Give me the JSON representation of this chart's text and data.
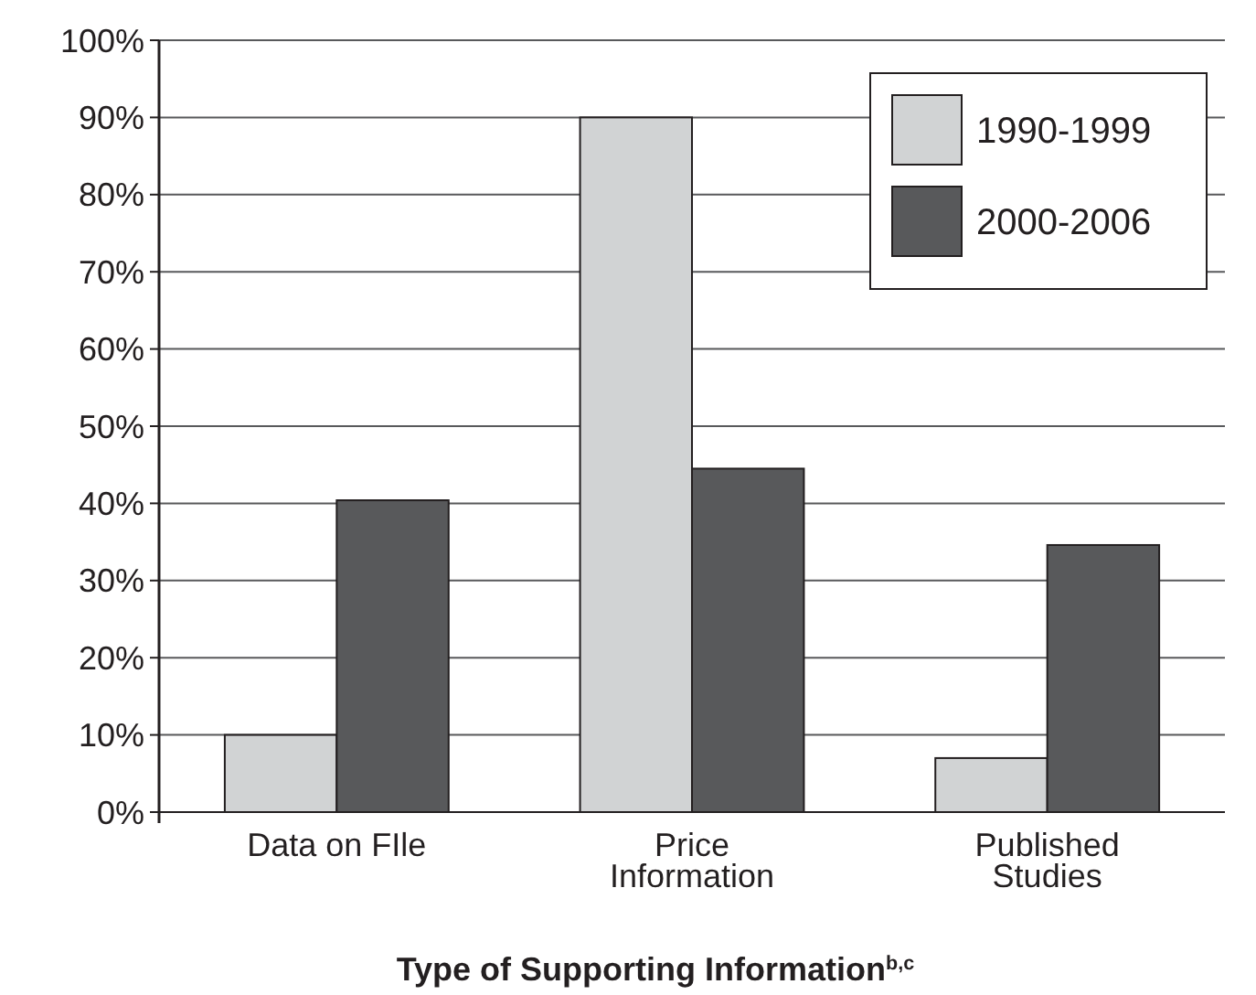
{
  "chart_data": {
    "type": "bar",
    "xlabel": "Type of Supporting Information$^{b,c}$",
    "categories": [
      "Data on FIle",
      "Price\nInformation",
      "Published\nStudies"
    ],
    "series": [
      {
        "name": "1990-1999",
        "color": "#d1d3d4",
        "values": [
          10,
          90,
          7
        ]
      },
      {
        "name": "2000-2006",
        "color": "#58595b",
        "values": [
          40.4,
          44.5,
          34.6
        ]
      }
    ],
    "ylim": [
      0,
      100
    ],
    "yticks": [
      {
        "value": 0,
        "label": "0%"
      },
      {
        "value": 10,
        "label": "10%"
      },
      {
        "value": 20,
        "label": "20%"
      },
      {
        "value": 30,
        "label": "30%"
      },
      {
        "value": 40,
        "label": "40%"
      },
      {
        "value": 50,
        "label": "50%"
      },
      {
        "value": 60,
        "label": "60%"
      },
      {
        "value": 70,
        "label": "70%"
      },
      {
        "value": 80,
        "label": "80%"
      },
      {
        "value": 90,
        "label": "90%"
      },
      {
        "value": 100,
        "label": "100%"
      }
    ],
    "grid": "y",
    "legend": "top right"
  }
}
